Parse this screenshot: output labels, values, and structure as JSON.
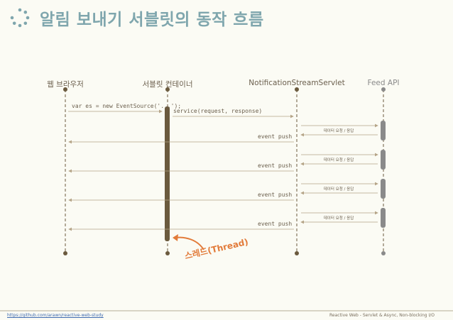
{
  "title": "알림 보내기 서블릿의 동작 흐름",
  "lanes": {
    "browser": "웹 브라우저",
    "container": "서블릿 컨테이너",
    "servlet": "NotificationStreamServlet",
    "feed": "Feed API"
  },
  "messages": {
    "event_source": "var es = new EventSource('...');",
    "service": "service(request, response)",
    "event_push": "event push",
    "data_request": "데이터 요청 / 응답"
  },
  "thread_label": "스레드(Thread)",
  "footer": {
    "link": "https://github.com/arawn/reactive-web-study",
    "caption": "Reactive Web - Servlet & Async, Non-blocking I/O"
  },
  "colors": {
    "title": "#7fa6ad",
    "lifeline": "#6b5a3e",
    "activation": "#6b5a3e",
    "feed_activation": "#8a8a8a",
    "thread_arrow": "#e27b3a"
  }
}
